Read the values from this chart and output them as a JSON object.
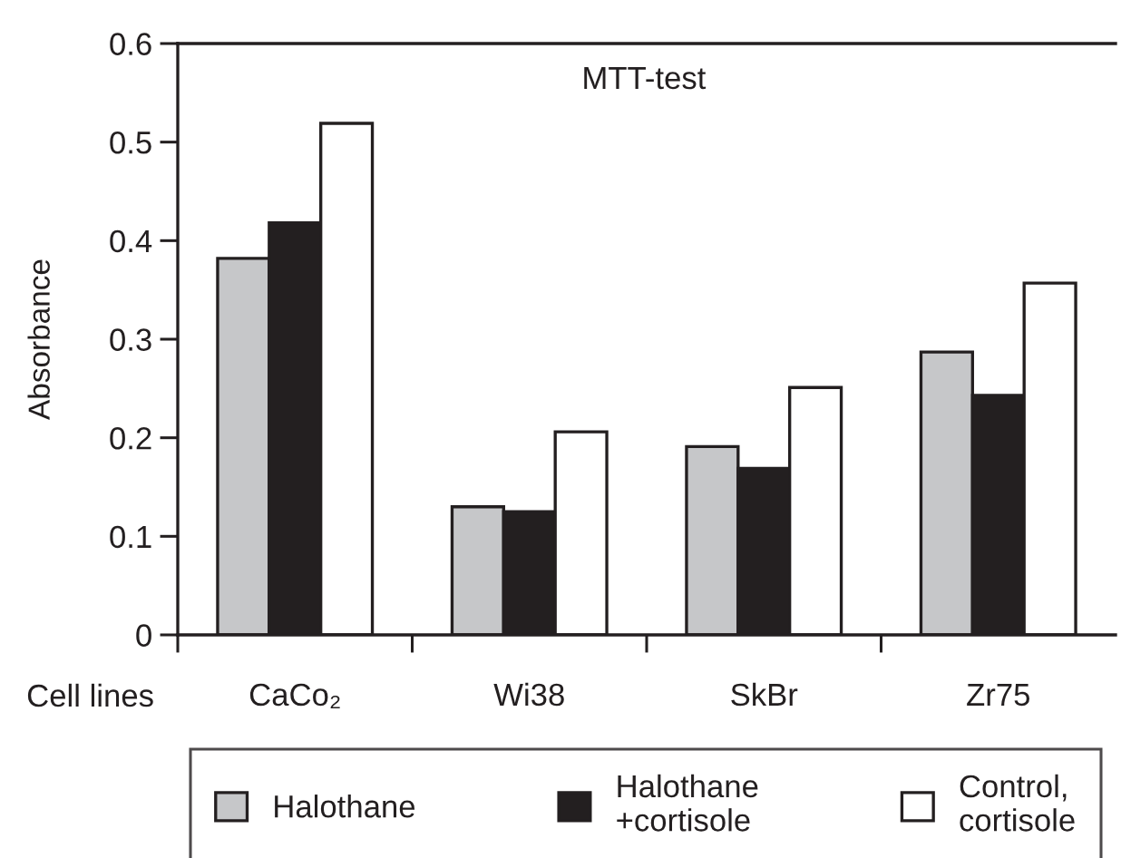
{
  "chart_data": {
    "type": "bar",
    "title": "MTT-test",
    "xlabel": "Cell lines",
    "ylabel": "Absorbance",
    "categories": [
      "CaCo₂",
      "Wi38",
      "SkBr",
      "Zr75"
    ],
    "series": [
      {
        "name": "Halothane",
        "color": "#c6c7c9",
        "values": [
          0.382,
          0.13,
          0.191,
          0.287
        ]
      },
      {
        "name": "Halothane\n+cortisole",
        "color": "#231f20",
        "values": [
          0.418,
          0.125,
          0.169,
          0.243
        ]
      },
      {
        "name": "Control,\ncortisole",
        "color": "#ffffff",
        "values": [
          0.519,
          0.206,
          0.251,
          0.357
        ]
      }
    ],
    "ylim": [
      0,
      0.6
    ],
    "yticks": [
      0,
      0.1,
      0.2,
      0.3,
      0.4,
      0.5,
      0.6
    ],
    "legend": "bottom"
  }
}
